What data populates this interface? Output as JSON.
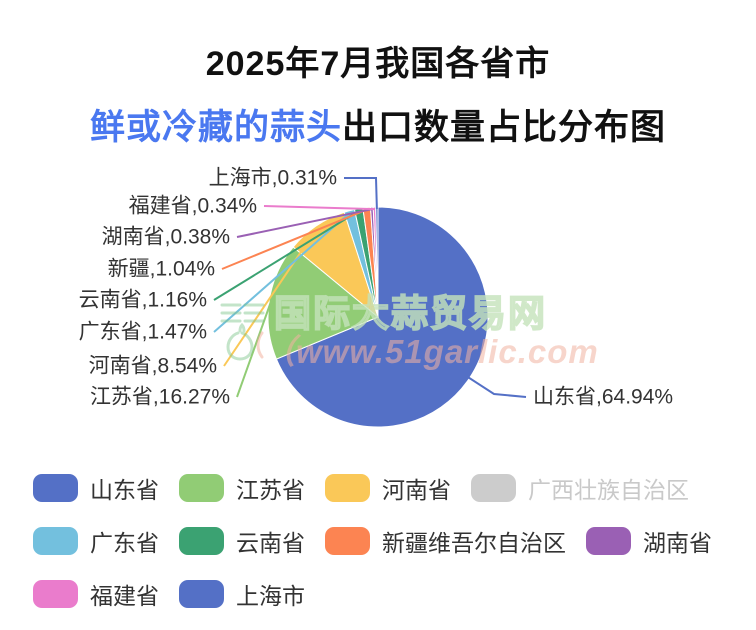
{
  "title": {
    "line1": "2025年7月我国各省市",
    "line2_highlight": "鲜或冷藏的蒜头",
    "line2_rest": "出口数量占比分布图",
    "highlight_color": "#4a78f0"
  },
  "watermark": {
    "brand": "国际大蒜贸易网",
    "url": "（www.51garlic.com",
    "brand_color": "#8cc795",
    "url_color": "#f2b3a2"
  },
  "chart_data": {
    "type": "pie",
    "title": "2025年7月我国各省市鲜或冷藏的蒜头出口数量占比分布图",
    "unit": "%",
    "label_format": "name,value%",
    "legend_position": "bottom",
    "series": [
      {
        "name": "山东省",
        "value": 64.94,
        "color": "#5470C6"
      },
      {
        "name": "江苏省",
        "value": 16.27,
        "color": "#91CC75"
      },
      {
        "name": "河南省",
        "value": 8.54,
        "color": "#FAC858"
      },
      {
        "name": "广东省",
        "value": 1.47,
        "color": "#73C0DE"
      },
      {
        "name": "云南省",
        "value": 1.16,
        "color": "#3BA272"
      },
      {
        "name": "新疆",
        "value": 1.04,
        "color": "#FC8452"
      },
      {
        "name": "湖南省",
        "value": 0.38,
        "color": "#9A60B4"
      },
      {
        "name": "福建省",
        "value": 0.34,
        "color": "#EA7CCC"
      },
      {
        "name": "上海市",
        "value": 0.31,
        "color": "#5470C6"
      }
    ],
    "legend": {
      "items": [
        {
          "label": "山东省",
          "color": "#5470C6",
          "disabled": false
        },
        {
          "label": "江苏省",
          "color": "#91CC75",
          "disabled": false
        },
        {
          "label": "河南省",
          "color": "#FAC858",
          "disabled": false
        },
        {
          "label": "广西壮族自治区",
          "color": "#CCCCCC",
          "disabled": true
        },
        {
          "label": "广东省",
          "color": "#73C0DE",
          "disabled": false
        },
        {
          "label": "云南省",
          "color": "#3BA272",
          "disabled": false
        },
        {
          "label": "新疆维吾尔自治区",
          "color": "#FC8452",
          "disabled": false
        },
        {
          "label": "湖南省",
          "color": "#9A60B4",
          "disabled": false
        },
        {
          "label": "福建省",
          "color": "#EA7CCC",
          "disabled": false
        },
        {
          "label": "上海市",
          "color": "#5470C6",
          "disabled": false
        }
      ]
    }
  }
}
